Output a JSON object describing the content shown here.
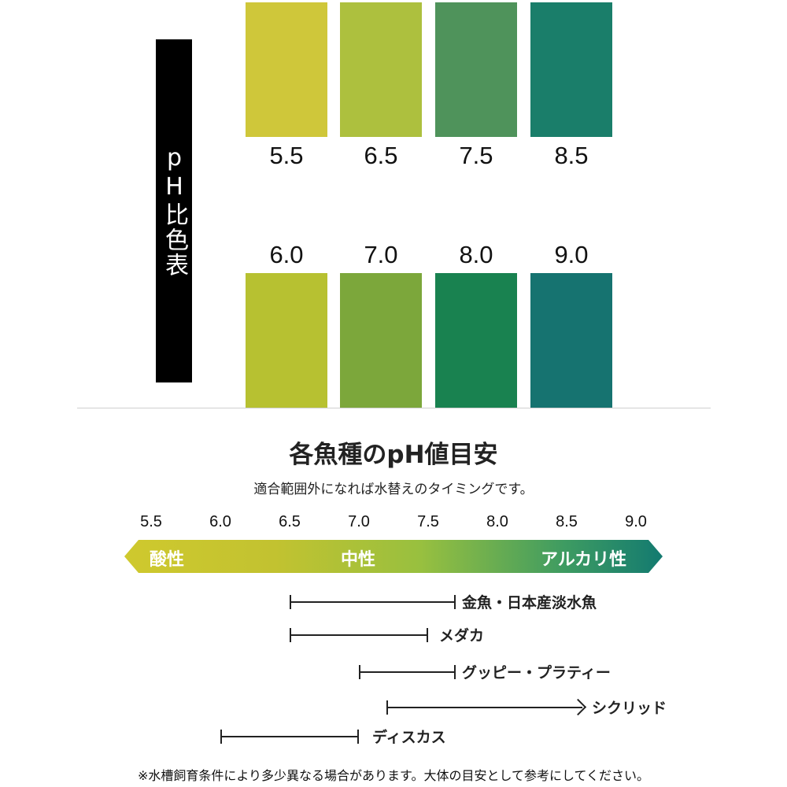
{
  "chart_label": "pH比色表",
  "swatches_top": [
    {
      "value": "5.5",
      "color": "#cfc73a"
    },
    {
      "value": "6.5",
      "color": "#adc03e"
    },
    {
      "value": "7.5",
      "color": "#4f935b"
    },
    {
      "value": "8.5",
      "color": "#1a7e6a"
    }
  ],
  "swatches_bottom": [
    {
      "value": "6.0",
      "color": "#b7c131"
    },
    {
      "value": "7.0",
      "color": "#7ca73b"
    },
    {
      "value": "8.0",
      "color": "#198250"
    },
    {
      "value": "9.0",
      "color": "#167370"
    }
  ],
  "title": "各魚種のpH値目安",
  "subtitle": "適合範囲外になれば水替えのタイミングです。",
  "scale": {
    "ticks": [
      "5.5",
      "6.0",
      "6.5",
      "7.0",
      "7.5",
      "8.0",
      "8.5",
      "9.0"
    ],
    "acid_label": "酸性",
    "neutral_label": "中性",
    "alkaline_label": "アルカリ性"
  },
  "ranges": [
    {
      "label": "金魚・日本産淡水魚",
      "min": 6.5,
      "max": 7.7
    },
    {
      "label": "メダカ",
      "min": 6.5,
      "max": 7.5
    },
    {
      "label": "グッピー・プラティー",
      "min": 7.0,
      "max": 7.7
    },
    {
      "label": "シクリッド",
      "min": 7.2,
      "max": 9.0,
      "open_ended": true
    },
    {
      "label": "ディスカス",
      "min": 6.0,
      "max": 7.0
    }
  ],
  "note": "※水槽飼育条件により多少異なる場合があります。大体の目安として参考にしてください。"
}
